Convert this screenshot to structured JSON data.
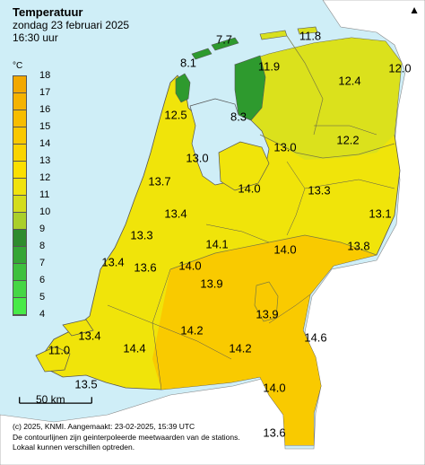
{
  "title": "Temperatuur",
  "subtitle_date": "zondag 23 februari 2025",
  "subtitle_time": "16:30 uur",
  "legend": {
    "unit": "°C",
    "levels": [
      "18",
      "17",
      "16",
      "15",
      "14",
      "13",
      "12",
      "11",
      "10",
      "9",
      "8",
      "7",
      "6",
      "5",
      "4"
    ],
    "colors": [
      "#f2a800",
      "#f5b300",
      "#f7bd00",
      "#f9c800",
      "#fad400",
      "#fbdf00",
      "#f0e20e",
      "#d4dc1c",
      "#aacf2a",
      "#2e8b2e",
      "#35a535",
      "#3ec03e",
      "#45d645",
      "#48ea48"
    ]
  },
  "stations": [
    {
      "value": "7.7"
    },
    {
      "value": "11.8"
    },
    {
      "value": "8.1"
    },
    {
      "value": "11.9"
    },
    {
      "value": "12.0"
    },
    {
      "value": "12.4"
    },
    {
      "value": "12.5"
    },
    {
      "value": "8.3"
    },
    {
      "value": "13.0"
    },
    {
      "value": "12.2"
    },
    {
      "value": "13.0"
    },
    {
      "value": "13.7"
    },
    {
      "value": "14.0"
    },
    {
      "value": "13.3"
    },
    {
      "value": "13.4"
    },
    {
      "value": "13.1"
    },
    {
      "value": "13.3"
    },
    {
      "value": "14.1"
    },
    {
      "value": "14.0"
    },
    {
      "value": "13.8"
    },
    {
      "value": "13.4"
    },
    {
      "value": "13.6"
    },
    {
      "value": "14.0"
    },
    {
      "value": "13.9"
    },
    {
      "value": "13.9"
    },
    {
      "value": "13.4"
    },
    {
      "value": "14.2"
    },
    {
      "value": "14.6"
    },
    {
      "value": "11.0"
    },
    {
      "value": "14.4"
    },
    {
      "value": "14.2"
    },
    {
      "value": "13.5"
    },
    {
      "value": "14.0"
    },
    {
      "value": "13.6"
    }
  ],
  "scale_label": "50 km",
  "footer": [
    "(c) 2025, KNMI. Aangemaakt: 23-02-2025, 15:39 UTC",
    "De contourlijnen zijn geinterpoleerde meetwaarden van de stations.",
    "Lokaal kunnen verschillen optreden."
  ],
  "map_colors": {
    "sea": "#cfeef7",
    "north_land": "#d8e01e",
    "mid_land": "#f0e40a",
    "south_land": "#f9c800",
    "deep_south": "#f6b800",
    "green": "#2e9a2e",
    "contour": "#7a7a40"
  }
}
